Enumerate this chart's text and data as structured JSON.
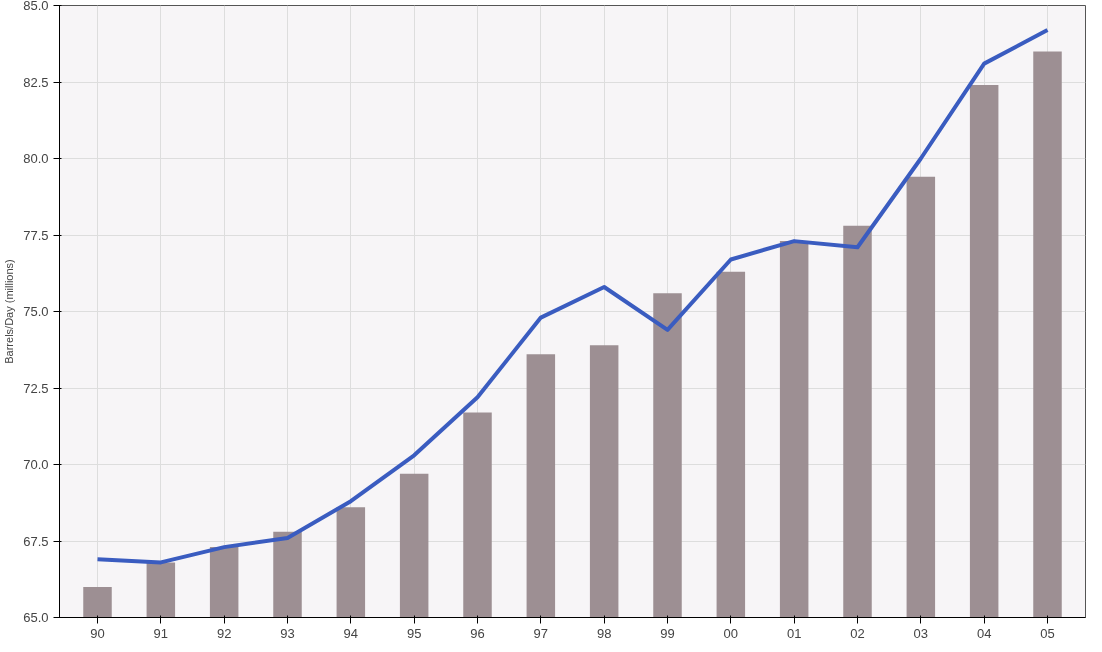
{
  "chart_data": {
    "type": "bar",
    "ylabel": "Barrels/Day (millions)",
    "categories": [
      "90",
      "91",
      "92",
      "93",
      "94",
      "95",
      "96",
      "97",
      "98",
      "99",
      "00",
      "01",
      "02",
      "03",
      "04",
      "05"
    ],
    "series": [
      {
        "color": "#9d8f93",
        "values": [
          66.0,
          66.8,
          67.3,
          67.8,
          68.6,
          69.7,
          71.7,
          73.6,
          73.9,
          75.6,
          76.3,
          77.3,
          77.8,
          79.4,
          82.4,
          83.5
        ]
      },
      {
        "type": "line",
        "color": "#3a5cc0",
        "values": [
          66.9,
          66.8,
          67.3,
          67.6,
          68.8,
          70.3,
          72.2,
          74.8,
          75.8,
          74.4,
          76.7,
          77.3,
          77.1,
          80.0,
          83.1,
          84.2
        ]
      }
    ],
    "ylim": [
      65,
      85
    ],
    "yticks": [
      {
        "value": 65,
        "label": "65.0"
      },
      67.5,
      {
        "value": 70,
        "label": "70.0"
      },
      72.5,
      {
        "value": 75,
        "label": "75.0"
      },
      77.5,
      {
        "value": 80,
        "label": "80.0"
      },
      82.5,
      {
        "value": 85,
        "label": "85.0"
      }
    ],
    "grid": true
  }
}
